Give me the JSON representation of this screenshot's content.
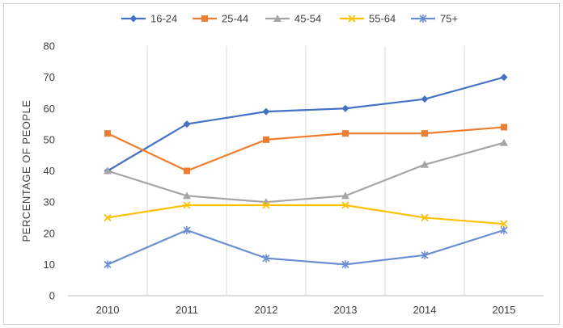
{
  "chart_data": {
    "type": "line",
    "title": "",
    "xlabel": "",
    "ylabel": "PERCENTAGE OF PEOPLE",
    "categories": [
      "2010",
      "2011",
      "2012",
      "2013",
      "2014",
      "2015"
    ],
    "ylim": [
      0,
      80
    ],
    "yticks": [
      "0",
      "10",
      "20",
      "30",
      "40",
      "50",
      "60",
      "70",
      "80"
    ],
    "grid": "vertical",
    "legend_position": "top",
    "series": [
      {
        "name": "16-24",
        "values": [
          40,
          55,
          59,
          60,
          63,
          70
        ],
        "color": "#4472c4",
        "marker": "diamond"
      },
      {
        "name": "25-44",
        "values": [
          52,
          40,
          50,
          52,
          52,
          54
        ],
        "color": "#ed7d31",
        "marker": "square"
      },
      {
        "name": "45-54",
        "values": [
          40,
          32,
          30,
          32,
          42,
          49
        ],
        "color": "#a5a5a5",
        "marker": "triangle"
      },
      {
        "name": "55-64",
        "values": [
          25,
          29,
          29,
          29,
          25,
          23
        ],
        "color": "#ffc000",
        "marker": "x"
      },
      {
        "name": "75+",
        "values": [
          10,
          21,
          12,
          10,
          13,
          21
        ],
        "color": "#6a8fd0",
        "marker": "star"
      }
    ]
  }
}
